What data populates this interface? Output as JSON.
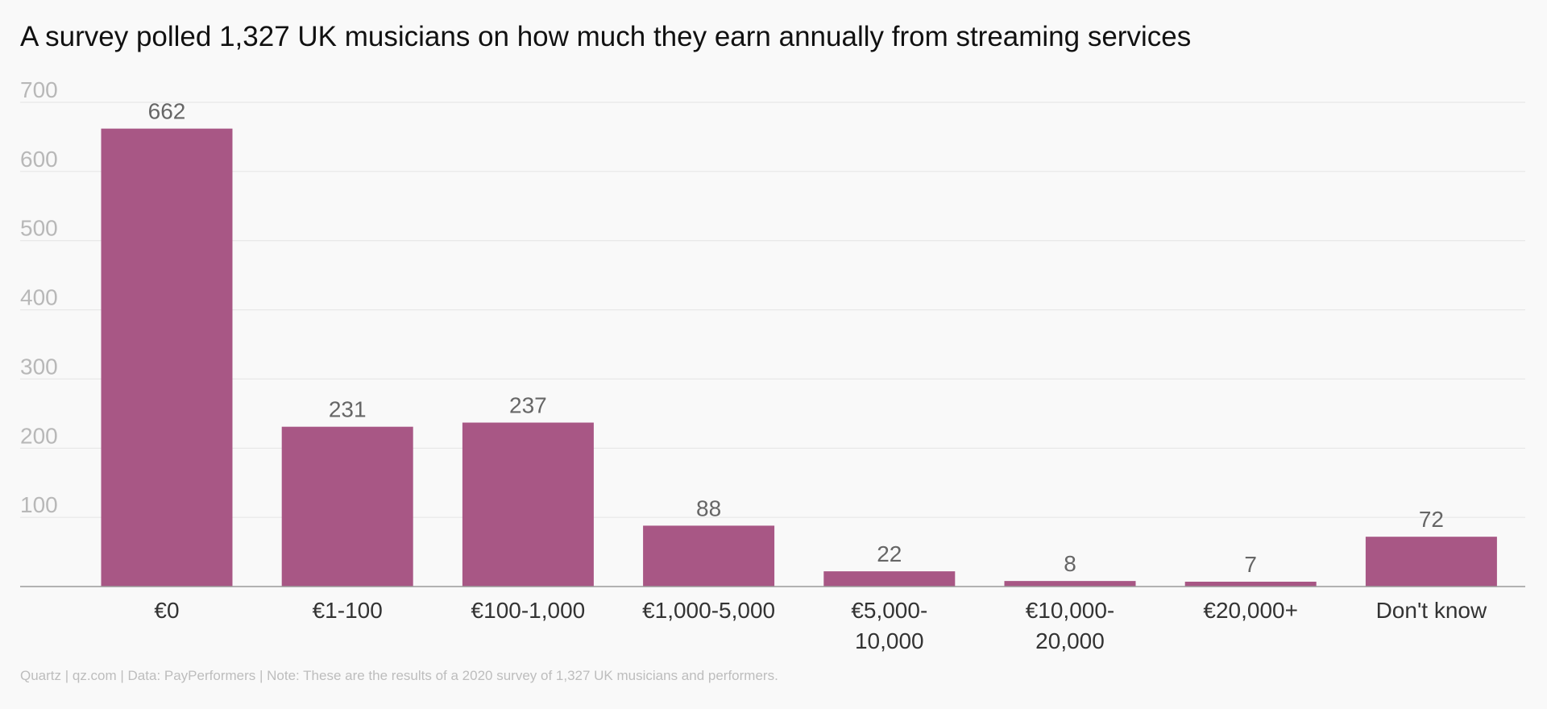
{
  "title": "A survey polled 1,327 UK musicians on how much they earn annually from streaming services",
  "footer": "Quartz | qz.com | Data: PayPerformers | Note: These are the results of a 2020 survey of 1,327 UK musicians and performers.",
  "colors": {
    "bar": "#a85785",
    "grid": "#e4e4e4",
    "axis": "#9a9a9a",
    "background": "#f9f9f9"
  },
  "chart_data": {
    "type": "bar",
    "title": "A survey polled 1,327 UK musicians on how much they earn annually from streaming services",
    "categories": [
      [
        "€0"
      ],
      [
        "€1-100"
      ],
      [
        "€100-1,000"
      ],
      [
        "€1,000-5,000"
      ],
      [
        "€5,000-",
        "10,000"
      ],
      [
        "€10,000-",
        "20,000"
      ],
      [
        "€20,000+"
      ],
      [
        "Don't know"
      ]
    ],
    "values": [
      662,
      231,
      237,
      88,
      22,
      8,
      7,
      72
    ],
    "ylim": [
      0,
      700
    ],
    "yticks": [
      100,
      200,
      300,
      400,
      500,
      600,
      700
    ],
    "grid": true,
    "data_labels": true
  }
}
